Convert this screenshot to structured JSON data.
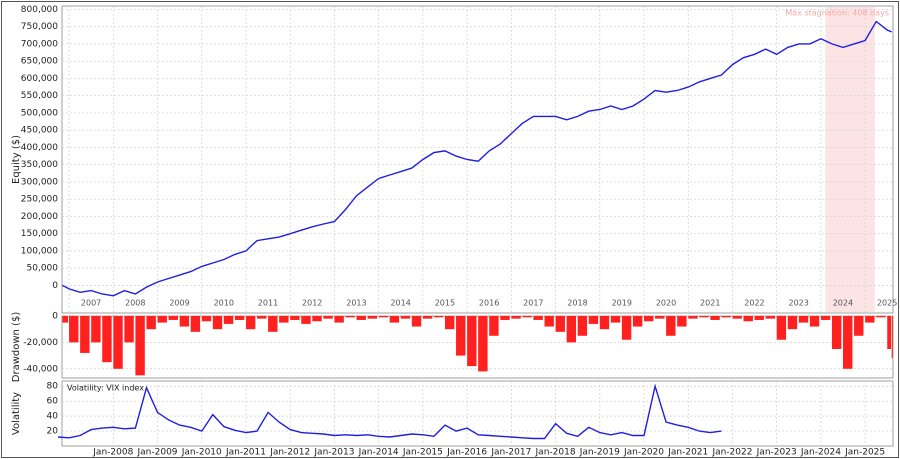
{
  "chart_data": [
    {
      "type": "line",
      "y_label": "Equity ($)",
      "color": "#1f1fe0",
      "grid": true,
      "x": [
        2006.85,
        2007,
        2007.25,
        2007.5,
        2007.75,
        2008,
        2008.25,
        2008.5,
        2008.75,
        2009,
        2009.25,
        2009.5,
        2009.75,
        2010,
        2010.25,
        2010.5,
        2010.75,
        2011,
        2011.25,
        2011.5,
        2011.75,
        2012,
        2012.25,
        2012.5,
        2012.75,
        2013,
        2013.25,
        2013.5,
        2013.75,
        2014,
        2014.25,
        2014.5,
        2014.75,
        2015,
        2015.25,
        2015.5,
        2015.75,
        2016,
        2016.25,
        2016.5,
        2016.75,
        2017,
        2017.25,
        2017.5,
        2017.75,
        2018,
        2018.25,
        2018.5,
        2018.75,
        2019,
        2019.25,
        2019.5,
        2019.75,
        2020,
        2020.25,
        2020.5,
        2020.75,
        2021,
        2021.25,
        2021.5,
        2021.75,
        2022,
        2022.25,
        2022.5,
        2022.75,
        2023,
        2023.25,
        2023.5,
        2023.75,
        2024,
        2024.25,
        2024.5,
        2024.75,
        2025,
        2025.25,
        2025.5,
        2025.6
      ],
      "values": [
        0,
        -10000,
        -20000,
        -15000,
        -25000,
        -30000,
        -15000,
        -25000,
        -5000,
        10000,
        20000,
        30000,
        40000,
        55000,
        65000,
        75000,
        90000,
        100000,
        130000,
        135000,
        140000,
        150000,
        160000,
        170000,
        178000,
        185000,
        220000,
        260000,
        285000,
        310000,
        320000,
        330000,
        340000,
        365000,
        385000,
        390000,
        375000,
        365000,
        360000,
        390000,
        410000,
        440000,
        470000,
        490000,
        490000,
        490000,
        480000,
        490000,
        505000,
        510000,
        520000,
        510000,
        520000,
        540000,
        565000,
        560000,
        565000,
        575000,
        590000,
        600000,
        610000,
        640000,
        660000,
        670000,
        685000,
        670000,
        690000,
        700000,
        700000,
        715000,
        700000,
        690000,
        700000,
        710000,
        765000,
        740000,
        735000
      ],
      "xlim": [
        2006.84,
        2025.63
      ],
      "ylim": [
        -80000,
        810000
      ],
      "xticks": [
        2007,
        2008,
        2009,
        2010,
        2011,
        2012,
        2013,
        2014,
        2015,
        2016,
        2017,
        2018,
        2019,
        2020,
        2021,
        2022,
        2023,
        2024,
        2025
      ],
      "yticks": [
        0,
        {
          "value": 50000,
          "label": "50,000"
        },
        {
          "value": 100000,
          "label": "100,000"
        },
        {
          "value": 150000,
          "label": "150,000"
        },
        {
          "value": 200000,
          "label": "200,000"
        },
        {
          "value": 250000,
          "label": "250,000"
        },
        {
          "value": 300000,
          "label": "300,000"
        },
        {
          "value": 350000,
          "label": "350,000"
        },
        {
          "value": 400000,
          "label": "400,000"
        },
        {
          "value": 450000,
          "label": "450,000"
        },
        {
          "value": 500000,
          "label": "500,000"
        },
        {
          "value": 550000,
          "label": "550,000"
        },
        {
          "value": 600000,
          "label": "600,000"
        },
        {
          "value": 650000,
          "label": "650,000"
        },
        {
          "value": 700000,
          "label": "700,000"
        },
        {
          "value": 750000,
          "label": "750,000"
        },
        {
          "value": 800000,
          "label": "800,000"
        }
      ],
      "annotation": {
        "text": "Max stagnation: 408 days",
        "span": [
          2024.1,
          2025.22
        ],
        "color": "#fde4e4"
      }
    },
    {
      "type": "bar",
      "y_label": "Drawdown ($)",
      "color": "#ff2020",
      "grid": true,
      "x": [
        2006.85,
        2007,
        2007.25,
        2007.5,
        2007.75,
        2008,
        2008.25,
        2008.5,
        2008.75,
        2009,
        2009.25,
        2009.5,
        2009.75,
        2010,
        2010.25,
        2010.5,
        2010.75,
        2011,
        2011.25,
        2011.5,
        2011.75,
        2012,
        2012.25,
        2012.5,
        2012.75,
        2013,
        2013.25,
        2013.5,
        2013.75,
        2014,
        2014.25,
        2014.5,
        2014.75,
        2015,
        2015.25,
        2015.5,
        2015.75,
        2016,
        2016.25,
        2016.5,
        2016.75,
        2017,
        2017.25,
        2017.5,
        2017.75,
        2018,
        2018.25,
        2018.5,
        2018.75,
        2019,
        2019.25,
        2019.5,
        2019.75,
        2020,
        2020.25,
        2020.5,
        2020.75,
        2021,
        2021.25,
        2021.5,
        2021.75,
        2022,
        2022.25,
        2022.5,
        2022.75,
        2023,
        2023.25,
        2023.5,
        2023.75,
        2024,
        2024.25,
        2024.5,
        2024.75,
        2025,
        2025.25,
        2025.5,
        2025.6
      ],
      "values": [
        -5000,
        -20000,
        -28000,
        -20000,
        -35000,
        -40000,
        -20000,
        -45000,
        -10000,
        -5000,
        -3000,
        -8000,
        -12000,
        -4000,
        -10000,
        -6000,
        -3000,
        -10000,
        -2000,
        -12000,
        -5000,
        -3000,
        -6000,
        -4000,
        -2000,
        -5000,
        -1000,
        -3000,
        -2000,
        -1000,
        -5000,
        -2000,
        -8000,
        -2000,
        -1000,
        -10000,
        -30000,
        -38000,
        -42000,
        -15000,
        -3000,
        -2000,
        -1000,
        -3000,
        -8000,
        -12000,
        -20000,
        -15000,
        -6000,
        -10000,
        -5000,
        -18000,
        -8000,
        -4000,
        -2000,
        -15000,
        -8000,
        -2000,
        -1000,
        -3000,
        -1000,
        -2000,
        -4000,
        -3000,
        -2000,
        -18000,
        -10000,
        -5000,
        -8000,
        -3000,
        -25000,
        -40000,
        -15000,
        -5000,
        -1000,
        -25000,
        -32000
      ],
      "xlim": [
        2006.84,
        2025.63
      ],
      "ylim": [
        -47000,
        0
      ],
      "yticks": [
        0,
        {
          "value": -20000,
          "label": "-20,000"
        },
        {
          "value": -40000,
          "label": "-40,000"
        }
      ]
    },
    {
      "type": "line",
      "y_label": "Volatility",
      "grid": true,
      "series": [
        {
          "name": "Volatility: VIX index",
          "color": "#1f1fe0",
          "x": [
            2006.75,
            2007,
            2007.25,
            2007.5,
            2007.75,
            2008,
            2008.25,
            2008.5,
            2008.75,
            2009,
            2009.25,
            2009.5,
            2009.75,
            2010,
            2010.25,
            2010.5,
            2010.75,
            2011,
            2011.25,
            2011.5,
            2011.75,
            2012,
            2012.25,
            2012.5,
            2012.75,
            2013,
            2013.25,
            2013.5,
            2013.75,
            2014,
            2014.25,
            2014.5,
            2014.75,
            2015,
            2015.25,
            2015.5,
            2015.75,
            2016,
            2016.25,
            2016.5,
            2016.75,
            2017,
            2017.25,
            2017.5,
            2017.75,
            2018,
            2018.25,
            2018.5,
            2018.75,
            2019,
            2019.25,
            2019.5,
            2019.75,
            2020,
            2020.25,
            2020.5,
            2020.75,
            2021,
            2021.25,
            2021.5,
            2021.75
          ],
          "values": [
            12,
            11,
            14,
            22,
            24,
            25,
            23,
            24,
            78,
            45,
            35,
            28,
            25,
            20,
            42,
            26,
            21,
            18,
            20,
            45,
            32,
            22,
            18,
            17,
            16,
            14,
            15,
            14,
            15,
            13,
            12,
            14,
            16,
            15,
            13,
            28,
            20,
            24,
            15,
            14,
            13,
            12,
            11,
            10,
            10,
            30,
            17,
            13,
            25,
            18,
            15,
            18,
            14,
            14,
            80,
            32,
            28,
            25,
            20,
            18,
            20
          ]
        }
      ],
      "xlim": [
        2006.84,
        2025.63
      ],
      "ylim": [
        0,
        87
      ],
      "xticks": [
        {
          "value": 2008,
          "label": "Jan-2008"
        },
        {
          "value": 2009,
          "label": "Jan-2009"
        },
        {
          "value": 2010,
          "label": "Jan-2010"
        },
        {
          "value": 2011,
          "label": "Jan-2011"
        },
        {
          "value": 2012,
          "label": "Jan-2012"
        },
        {
          "value": 2013,
          "label": "Jan-2013"
        },
        {
          "value": 2014,
          "label": "Jan-2014"
        },
        {
          "value": 2015,
          "label": "Jan-2015"
        },
        {
          "value": 2016,
          "label": "Jan-2016"
        },
        {
          "value": 2017,
          "label": "Jan-2017"
        },
        {
          "value": 2018,
          "label": "Jan-2018"
        },
        {
          "value": 2019,
          "label": "Jan-2019"
        },
        {
          "value": 2020,
          "label": "Jan-2020"
        },
        {
          "value": 2021,
          "label": "Jan-2021"
        },
        {
          "value": 2022,
          "label": "Jan-2022"
        },
        {
          "value": 2023,
          "label": "Jan-2023"
        },
        {
          "value": 2024,
          "label": "Jan-2024"
        },
        {
          "value": 2025,
          "label": "Jan-2025"
        }
      ],
      "yticks": [
        20,
        40,
        60,
        80
      ]
    }
  ]
}
